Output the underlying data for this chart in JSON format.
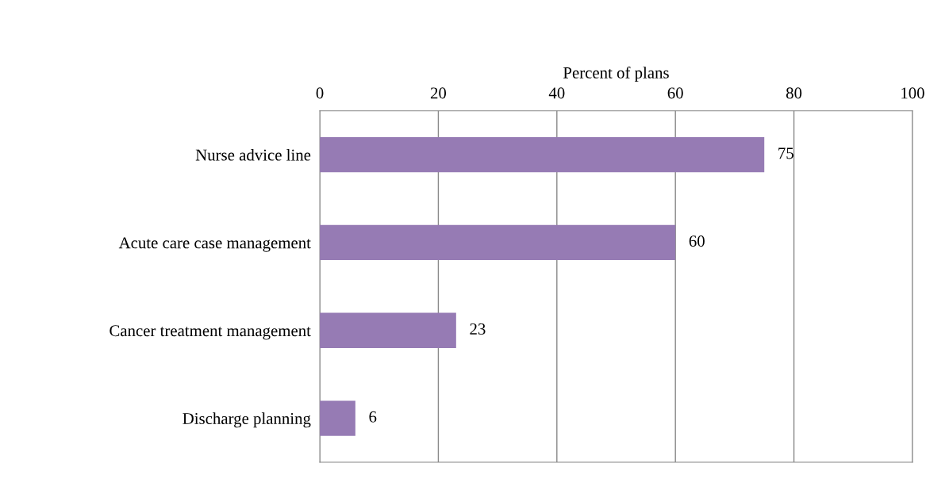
{
  "chart_data": {
    "type": "bar",
    "orientation": "horizontal",
    "xlabel": "Percent of plans",
    "categories": [
      "Nurse advice line",
      "Acute care case management",
      "Cancer treatment management",
      "Discharge planning"
    ],
    "values": [
      75,
      60,
      23,
      6
    ],
    "color": "#967bb4",
    "xlim": [
      0,
      100
    ],
    "xticks": [
      0,
      20,
      40,
      60,
      80,
      100
    ],
    "grid": "x",
    "data_labels": true
  }
}
